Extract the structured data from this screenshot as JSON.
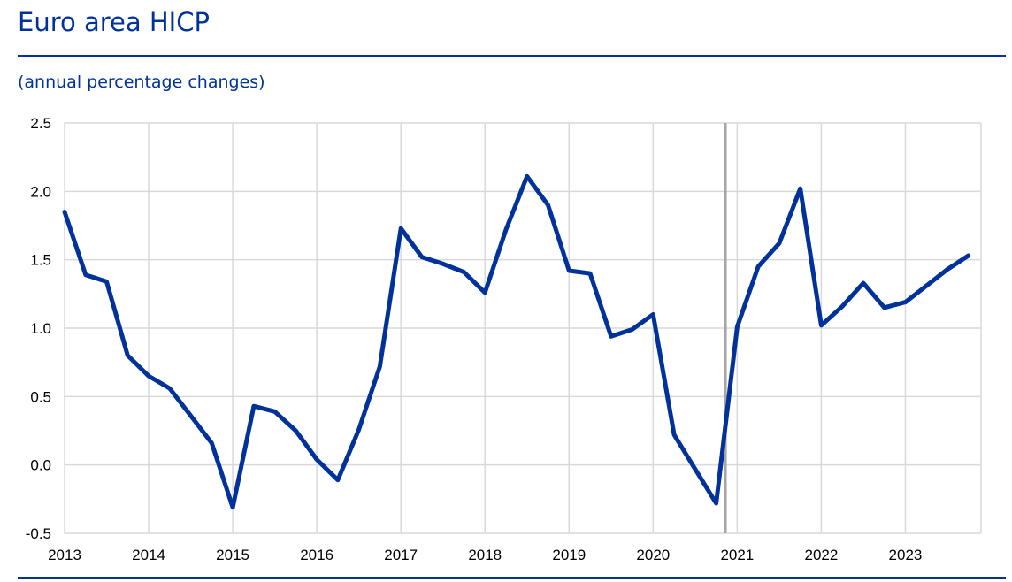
{
  "header": {
    "title": "Euro area HICP",
    "subtitle": "(annual percentage changes)"
  },
  "colors": {
    "series": "#003299",
    "grid": "#d9d9d9",
    "marker_line": "#a6a6a6",
    "title": "#003299"
  },
  "chart_data": {
    "type": "line",
    "title": "Euro area HICP",
    "subtitle": "(annual percentage changes)",
    "xlabel": "",
    "ylabel": "",
    "grid": true,
    "legend": "none",
    "xlim": [
      2013,
      2023.9
    ],
    "ylim": [
      -0.5,
      2.5
    ],
    "x_ticks": [
      2013,
      2014,
      2015,
      2016,
      2017,
      2018,
      2019,
      2020,
      2021,
      2022,
      2023
    ],
    "x_tick_labels": [
      "2013",
      "2014",
      "2015",
      "2016",
      "2017",
      "2018",
      "2019",
      "2020",
      "2021",
      "2022",
      "2023"
    ],
    "y_ticks": [
      -0.5,
      0.0,
      0.5,
      1.0,
      1.5,
      2.0,
      2.5
    ],
    "y_tick_labels": [
      "-0.5",
      "0.0",
      "0.5",
      "1.0",
      "1.5",
      "2.0",
      "2.5"
    ],
    "vertical_marker_x": 2020.86,
    "series": [
      {
        "x": [
          2013.0,
          2013.25,
          2013.5,
          2013.75,
          2014.0,
          2014.25,
          2014.5,
          2014.75,
          2015.0,
          2015.25,
          2015.5,
          2015.75,
          2016.0,
          2016.25,
          2016.5,
          2016.75,
          2017.0,
          2017.25,
          2017.5,
          2017.75,
          2018.0,
          2018.25,
          2018.5,
          2018.75,
          2019.0,
          2019.25,
          2019.5,
          2019.75,
          2020.0,
          2020.25,
          2020.5,
          2020.75,
          2021.0,
          2021.25,
          2021.5,
          2021.75,
          2022.0,
          2022.25,
          2022.5,
          2022.75,
          2023.0,
          2023.25,
          2023.5,
          2023.75
        ],
        "values": [
          1.85,
          1.39,
          1.34,
          0.8,
          0.65,
          0.56,
          0.36,
          0.16,
          -0.31,
          0.43,
          0.39,
          0.25,
          0.04,
          -0.11,
          0.26,
          0.72,
          1.73,
          1.52,
          1.47,
          1.41,
          1.26,
          1.72,
          2.11,
          1.9,
          1.42,
          1.4,
          0.94,
          0.99,
          1.1,
          0.22,
          -0.03,
          -0.28,
          1.01,
          1.45,
          1.62,
          2.02,
          1.02,
          1.16,
          1.33,
          1.15,
          1.19,
          1.31,
          1.43,
          1.53
        ]
      }
    ]
  }
}
